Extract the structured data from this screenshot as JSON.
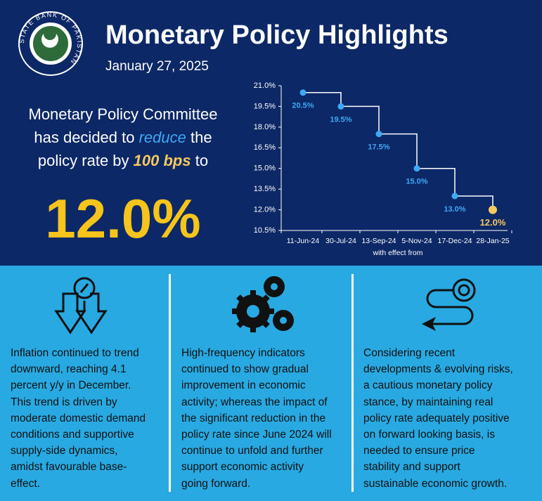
{
  "header": {
    "title": "Monetary Policy Highlights",
    "date": "January 27, 2025",
    "logo_text": "STATE BANK OF PAKISTAN"
  },
  "announcement": {
    "line1": "Monetary Policy Committee",
    "line2a": "has decided to",
    "line2b": "reduce",
    "line2c": "the",
    "line3a": "policy rate by",
    "line3b": "100 bps",
    "line3c": "to",
    "rate": "12.0%"
  },
  "chart_data": {
    "type": "line",
    "step": true,
    "categories": [
      "11-Jun-24",
      "30-Jul-24",
      "13-Sep-24",
      "5-Nov-24",
      "17-Dec-24",
      "28-Jan-25"
    ],
    "values": [
      20.5,
      19.5,
      17.5,
      15.0,
      13.0,
      12.0
    ],
    "value_labels": [
      "20.5%",
      "19.5%",
      "17.5%",
      "15.0%",
      "13.0%",
      "12.0%"
    ],
    "color": "#ffffff",
    "point_colors": [
      "#3fa9f5",
      "#3fa9f5",
      "#3fa9f5",
      "#3fa9f5",
      "#3fa9f5",
      "#f5c95e"
    ],
    "x_label": "with effect from",
    "ylim": [
      10.5,
      21.0
    ],
    "yticks": [
      {
        "value": 10.5,
        "label": "10.5%"
      },
      {
        "value": 12.0,
        "label": "12.0%"
      },
      {
        "value": 13.5,
        "label": "13.5%"
      },
      {
        "value": 15.0,
        "label": "15.0%"
      },
      {
        "value": 16.5,
        "label": "16.5%"
      },
      {
        "value": 18.0,
        "label": "18.0%"
      },
      {
        "value": 19.5,
        "label": "19.5%"
      },
      {
        "value": 21.0,
        "label": "21.0%"
      }
    ],
    "grid": false
  },
  "panels": [
    {
      "lines": [
        "Inflation continued to trend",
        "downward, reaching 4.1",
        "percent y/y in December.",
        "This trend is driven by",
        "moderate domestic demand",
        "conditions and supportive",
        "supply-side dynamics,",
        "amidst favourable base-",
        "effect."
      ]
    },
    {
      "lines": [
        "High-frequency indicators",
        "continued to show gradual",
        "improvement in economic",
        "activity; whereas the impact of",
        "the significant reduction in the",
        "policy rate since June 2024 will",
        "continue to unfold and further",
        "support economic activity",
        "going forward."
      ]
    },
    {
      "lines": [
        "Considering recent",
        "developments & evolving risks,",
        "a cautious monetary policy",
        "stance, by maintaining real",
        "policy rate adequately positive",
        "on forward looking basis, is",
        "needed to ensure price",
        "stability and support",
        "sustainable economic growth."
      ]
    }
  ]
}
